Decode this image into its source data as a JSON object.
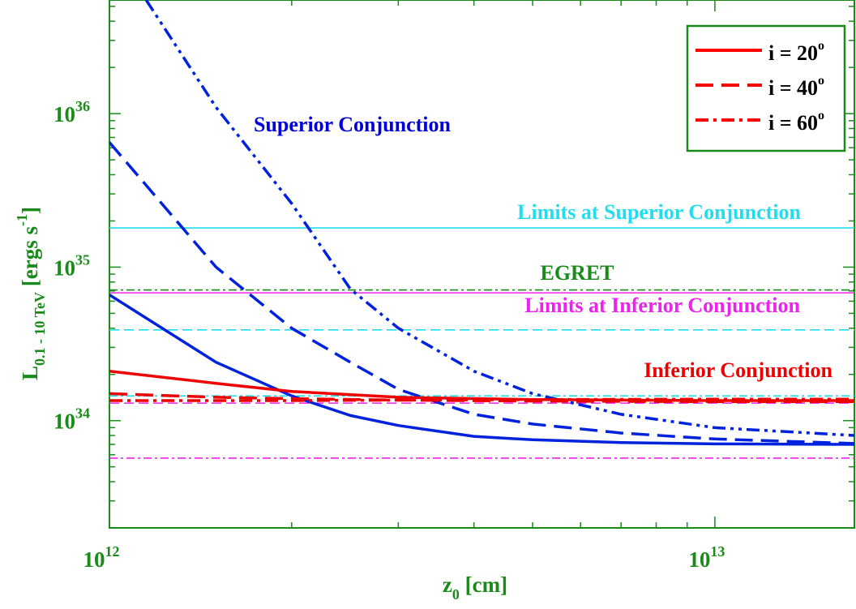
{
  "chart_data": {
    "type": "line",
    "xscale": "log",
    "yscale": "log",
    "xlim": [
      1000000000000.0,
      17000000000000.0
    ],
    "ylim": [
      2e+33,
      5.5e+36
    ],
    "x_ticks": [
      {
        "value": 1000000000000.0,
        "base": "10",
        "exp": "12"
      },
      {
        "value": 10000000000000.0,
        "base": "10",
        "exp": "13"
      }
    ],
    "y_ticks": [
      {
        "value": 1e+34,
        "base": "10",
        "exp": "34"
      },
      {
        "value": 1e+35,
        "base": "10",
        "exp": "35"
      },
      {
        "value": 1e+36,
        "base": "10",
        "exp": "36"
      }
    ],
    "xlabel": {
      "main": "z",
      "sub": "0",
      "rest": " [cm]"
    },
    "ylabel": {
      "main": "L",
      "sub": "0.1 - 10 TeV",
      "rest": " [ergs  s",
      "sup": "-1",
      "close": "]"
    },
    "legend": {
      "position": "top-right",
      "entries": [
        {
          "text": "i = 20",
          "sup": "o",
          "style": "solid",
          "color": "#ff0000"
        },
        {
          "text": "i = 40",
          "sup": "o",
          "style": "dash",
          "color": "#ff0000"
        },
        {
          "text": "i = 60",
          "sup": "o",
          "style": "dashdot",
          "color": "#ff0000"
        }
      ]
    },
    "annotations": [
      {
        "text": "Superior Conjunction",
        "color": "#0000dd"
      },
      {
        "text": "Limits at Superior Conjunction",
        "color": "#22ddee"
      },
      {
        "text": "EGRET",
        "color": "#1a8a1a"
      },
      {
        "text": "Limits at Inferior Conjunction",
        "color": "#ee22ee"
      },
      {
        "text": "Inferior Conjunction",
        "color": "#ee0000"
      }
    ],
    "hlines": [
      {
        "value": 1.8e+35,
        "color": "#22ddee",
        "style": "solid"
      },
      {
        "value": 7.1e+34,
        "color": "#1a8a1a",
        "style": "dashdot"
      },
      {
        "value": 6.8e+34,
        "color": "#ee22ee",
        "style": "solid"
      },
      {
        "value": 3.9e+34,
        "color": "#22ddee",
        "style": "dash"
      },
      {
        "value": 1.45e+34,
        "color": "#22ddee",
        "style": "dashdot"
      },
      {
        "value": 1.3e+34,
        "color": "#ee22ee",
        "style": "dash"
      },
      {
        "value": 5.7e+33,
        "color": "#ee22ee",
        "style": "dashdot"
      }
    ],
    "series": [
      {
        "group": "superior",
        "inclination": 20,
        "style": "solid",
        "color": "#0022dd",
        "x": [
          1000000000000.0,
          1500000000000.0,
          2000000000000.0,
          2500000000000.0,
          3000000000000.0,
          4000000000000.0,
          5000000000000.0,
          7000000000000.0,
          10000000000000.0,
          17000000000000.0
        ],
        "y": [
          6.6e+34,
          2.4e+34,
          1.45e+34,
          1.08e+34,
          9.3e+33,
          7.9e+33,
          7.5e+33,
          7.2e+33,
          7.05e+33,
          7e+33
        ]
      },
      {
        "group": "superior",
        "inclination": 40,
        "style": "dash",
        "color": "#0022dd",
        "x": [
          1000000000000.0,
          1500000000000.0,
          2000000000000.0,
          2500000000000.0,
          3000000000000.0,
          4000000000000.0,
          5000000000000.0,
          7000000000000.0,
          10000000000000.0,
          17000000000000.0
        ],
        "y": [
          6.5e+35,
          1e+35,
          4e+34,
          2.4e+34,
          1.6e+34,
          1.1e+34,
          9.5e+33,
          8.3e+33,
          7.6e+33,
          7.1e+33
        ]
      },
      {
        "group": "superior",
        "inclination": 60,
        "style": "dashdotdot",
        "color": "#0022dd",
        "x": [
          1150000000000.0,
          1500000000000.0,
          2000000000000.0,
          2500000000000.0,
          3000000000000.0,
          4000000000000.0,
          5000000000000.0,
          7000000000000.0,
          10000000000000.0,
          17000000000000.0
        ],
        "y": [
          5.5e+36,
          1.1e+36,
          2.6e+35,
          7.2e+34,
          4e+34,
          2.1e+34,
          1.5e+34,
          1.1e+34,
          9e+33,
          8e+33
        ]
      },
      {
        "group": "inferior",
        "inclination": 20,
        "style": "solid",
        "color": "#ee0000",
        "x": [
          1000000000000.0,
          1500000000000.0,
          2000000000000.0,
          3000000000000.0,
          5000000000000.0,
          10000000000000.0,
          17000000000000.0
        ],
        "y": [
          2.1e+34,
          1.75e+34,
          1.55e+34,
          1.42e+34,
          1.37e+34,
          1.35e+34,
          1.35e+34
        ]
      },
      {
        "group": "inferior",
        "inclination": 40,
        "style": "dash",
        "color": "#ee0000",
        "x": [
          1000000000000.0,
          1500000000000.0,
          2000000000000.0,
          3000000000000.0,
          5000000000000.0,
          10000000000000.0,
          17000000000000.0
        ],
        "y": [
          1.5e+34,
          1.42e+34,
          1.39e+34,
          1.36e+34,
          1.34e+34,
          1.33e+34,
          1.33e+34
        ]
      },
      {
        "group": "inferior",
        "inclination": 60,
        "style": "dashdot",
        "color": "#ee0000",
        "x": [
          1000000000000.0,
          1500000000000.0,
          2000000000000.0,
          3000000000000.0,
          5000000000000.0,
          10000000000000.0,
          17000000000000.0
        ],
        "y": [
          1.35e+34,
          1.35e+34,
          1.35e+34,
          1.36e+34,
          1.37e+34,
          1.38e+34,
          1.38e+34
        ]
      }
    ]
  }
}
